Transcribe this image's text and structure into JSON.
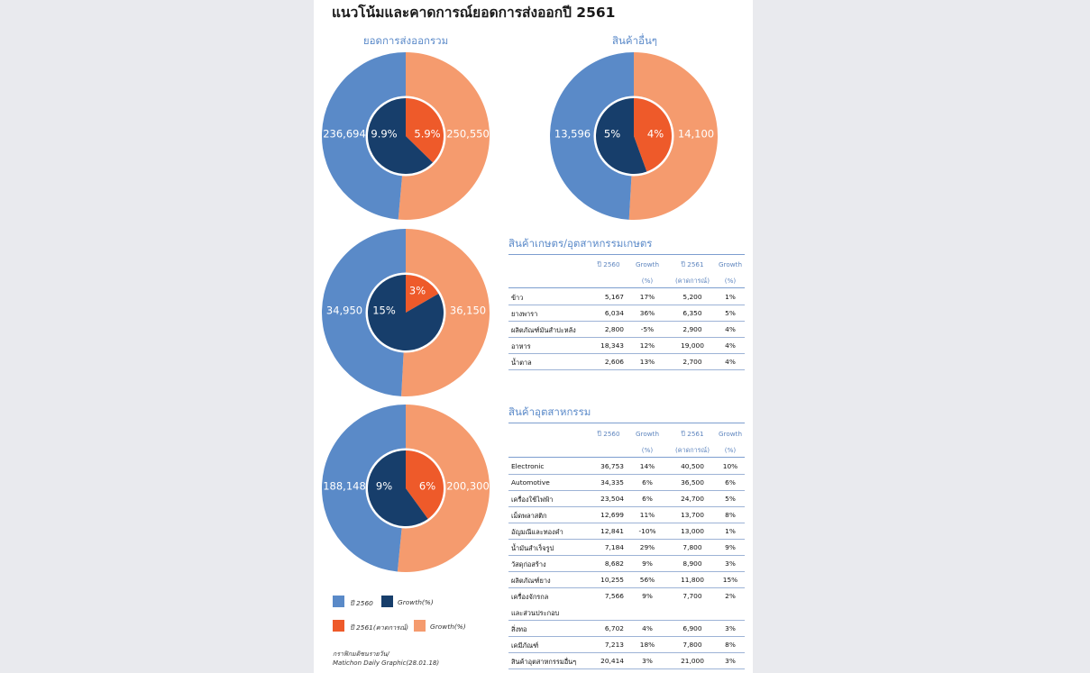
{
  "title": "แนวโน้มและคาดการณ์ยอดการส่งออกปี 2561",
  "colors": {
    "y2560": "#5a8ac8",
    "y2561": "#f59b6e",
    "growth2560": "#173e6b",
    "growth2561": "#ee5a2a"
  },
  "chart_data": [
    {
      "type": "pie",
      "title": "ยอดการส่งออกรวม",
      "slices": [
        {
          "label": "ปี 2560",
          "value": 236694,
          "value_label": "236,694"
        },
        {
          "label": "ปี 2561(คาดการณ์)",
          "value": 250550,
          "value_label": "250,550"
        }
      ],
      "growth": [
        {
          "label": "Growth(%)",
          "value": 9.9,
          "value_label": "9.9%"
        },
        {
          "label": "Growth(%)",
          "value": 5.9,
          "value_label": "5.9%"
        }
      ]
    },
    {
      "type": "pie",
      "title": "สินค้าอื่นๆ",
      "slices": [
        {
          "label": "ปี 2560",
          "value": 13596,
          "value_label": "13,596"
        },
        {
          "label": "ปี 2561(คาดการณ์)",
          "value": 14100,
          "value_label": "14,100"
        }
      ],
      "growth": [
        {
          "label": "Growth(%)",
          "value": 5,
          "value_label": "5%"
        },
        {
          "label": "Growth(%)",
          "value": 4,
          "value_label": "4%"
        }
      ]
    },
    {
      "type": "pie",
      "title": "",
      "slices": [
        {
          "label": "ปี 2560",
          "value": 34950,
          "value_label": "34,950"
        },
        {
          "label": "ปี 2561(คาดการณ์)",
          "value": 36150,
          "value_label": "36,150"
        }
      ],
      "growth": [
        {
          "label": "Growth(%)",
          "value": 15,
          "value_label": "15%"
        },
        {
          "label": "Growth(%)",
          "value": 3,
          "value_label": "3%"
        }
      ]
    },
    {
      "type": "pie",
      "title": "",
      "slices": [
        {
          "label": "ปี 2560",
          "value": 188148,
          "value_label": "188,148"
        },
        {
          "label": "ปี 2561(คาดการณ์)",
          "value": 200300,
          "value_label": "200,300"
        }
      ],
      "growth": [
        {
          "label": "Growth(%)",
          "value": 9,
          "value_label": "9%"
        },
        {
          "label": "Growth(%)",
          "value": 6,
          "value_label": "6%"
        }
      ]
    },
    {
      "type": "table",
      "title": "สินค้าเกษตร/อุตสาหกรรมเกษตร",
      "columns": [
        "",
        "ปี 2560",
        "Growth",
        "ปี 2561",
        "Growth"
      ],
      "columns_sub": [
        "",
        "",
        "(%)",
        "(คาดการณ์)",
        "(%)"
      ],
      "rows": [
        [
          "ข้าว",
          "5,167",
          "17%",
          "5,200",
          "1%"
        ],
        [
          "ยางพารา",
          "6,034",
          "36%",
          "6,350",
          "5%"
        ],
        [
          "ผลิตภัณฑ์มันสำปะหลัง",
          "2,800",
          "-5%",
          "2,900",
          "4%"
        ],
        [
          "อาหาร",
          "18,343",
          "12%",
          "19,000",
          "4%"
        ],
        [
          "น้ำตาล",
          "2,606",
          "13%",
          "2,700",
          "4%"
        ]
      ]
    },
    {
      "type": "table",
      "title": "สินค้าอุตสาหกรรม",
      "columns": [
        "",
        "ปี 2560",
        "Growth",
        "ปี 2561",
        "Growth"
      ],
      "columns_sub": [
        "",
        "",
        "(%)",
        "(คาดการณ์)",
        "(%)"
      ],
      "rows": [
        [
          "Electronic",
          "36,753",
          "14%",
          "40,500",
          "10%"
        ],
        [
          "Automotive",
          "34,335",
          "6%",
          "36,500",
          "6%"
        ],
        [
          "เครื่องใช้ไฟฟ้า",
          "23,504",
          "6%",
          "24,700",
          "5%"
        ],
        [
          "เม็ดพลาสติก",
          "12,699",
          "11%",
          "13,700",
          "8%"
        ],
        [
          "อัญมณีและทองคำ",
          "12,841",
          "-10%",
          "13,000",
          "1%"
        ],
        [
          "น้ำมันสำเร็จรูป",
          "7,184",
          "29%",
          "7,800",
          "9%"
        ],
        [
          "วัสดุก่อสร้าง",
          "8,682",
          "9%",
          "8,900",
          "3%"
        ],
        [
          "ผลิตภัณฑ์ยาง",
          "10,255",
          "56%",
          "11,800",
          "15%"
        ],
        [
          "เครื่องจักรกล",
          "7,566",
          "9%",
          "7,700",
          "2%"
        ],
        [
          "และส่วนประกอบ",
          "",
          "",
          "",
          ""
        ],
        [
          "สิ่งทอ",
          "6,702",
          "4%",
          "6,900",
          "3%"
        ],
        [
          "เคมีภัณฑ์",
          "7,213",
          "18%",
          "7,800",
          "8%"
        ],
        [
          "สินค้าอุตสาหกรรมอื่นๆ",
          "20,414",
          "3%",
          "21,000",
          "3%"
        ]
      ]
    }
  ],
  "legend": [
    {
      "label": "ปี 2560",
      "color": "#5a8ac8"
    },
    {
      "label": "Growth(%)",
      "color": "#173e6b"
    },
    {
      "label": "ปี 2561(คาดการณ์)",
      "color": "#ee5a2a"
    },
    {
      "label": "Growth(%)",
      "color": "#f59b6e"
    }
  ],
  "credit": [
    "กราฟิกมติชนรายวัน/",
    "Matichon  Daily  Graphic(28.01.18)"
  ]
}
